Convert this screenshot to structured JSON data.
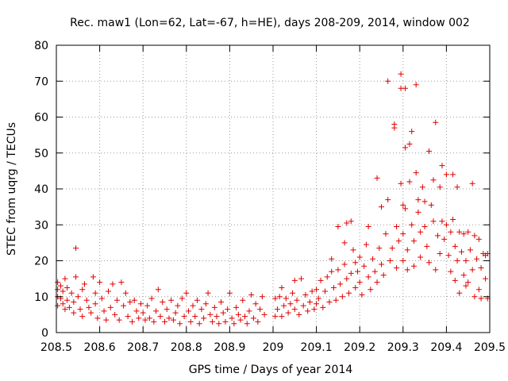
{
  "chart_data": {
    "type": "scatter",
    "title": "Rec. maw1 (Lon=62, Lat=-67, h=HE), days 208-209, 2014, window 002",
    "xlabel": "GPS time / Days of year 2014",
    "ylabel": "STEC from uqrg / TECUs",
    "xlim": [
      208.5,
      209.5
    ],
    "ylim": [
      0,
      80
    ],
    "x_ticks": [
      208.5,
      208.6,
      208.7,
      208.8,
      208.9,
      209.0,
      209.1,
      209.2,
      209.3,
      209.4,
      209.5
    ],
    "x_tick_labels": [
      "208.5",
      "208.6",
      "208.7",
      "208.8",
      "208.9",
      "209",
      "209.1",
      "209.2",
      "209.3",
      "209.4",
      "209.5"
    ],
    "y_ticks": [
      0,
      10,
      20,
      30,
      40,
      50,
      60,
      70,
      80
    ],
    "y_tick_labels": [
      "0",
      "10",
      "20",
      "30",
      "40",
      "50",
      "60",
      "70",
      "80"
    ],
    "grid": true,
    "marker": "+",
    "marker_color": "#e00000",
    "series": [
      {
        "name": "STEC",
        "points": [
          [
            208.503,
            14.0
          ],
          [
            208.503,
            12.0
          ],
          [
            208.503,
            10.0
          ],
          [
            208.503,
            7.5
          ],
          [
            208.51,
            13.0
          ],
          [
            208.51,
            9.5
          ],
          [
            208.515,
            11.5
          ],
          [
            208.515,
            8.0
          ],
          [
            208.52,
            15.0
          ],
          [
            208.52,
            6.5
          ],
          [
            208.525,
            12.5
          ],
          [
            208.525,
            9.0
          ],
          [
            208.53,
            7.0
          ],
          [
            208.535,
            11.0
          ],
          [
            208.54,
            8.5
          ],
          [
            208.54,
            5.5
          ],
          [
            208.545,
            15.5
          ],
          [
            208.545,
            23.5
          ],
          [
            208.55,
            10.0
          ],
          [
            208.555,
            6.5
          ],
          [
            208.56,
            12.0
          ],
          [
            208.56,
            4.5
          ],
          [
            208.565,
            13.5
          ],
          [
            208.57,
            9.0
          ],
          [
            208.575,
            7.0
          ],
          [
            208.58,
            5.5
          ],
          [
            208.585,
            15.5
          ],
          [
            208.59,
            11.0
          ],
          [
            208.59,
            8.0
          ],
          [
            208.595,
            4.0
          ],
          [
            208.6,
            14.0
          ],
          [
            208.605,
            9.5
          ],
          [
            208.61,
            6.0
          ],
          [
            208.615,
            3.5
          ],
          [
            208.62,
            11.5
          ],
          [
            208.625,
            7.0
          ],
          [
            208.63,
            13.5
          ],
          [
            208.635,
            5.0
          ],
          [
            208.64,
            9.0
          ],
          [
            208.645,
            3.5
          ],
          [
            208.65,
            14.0
          ],
          [
            208.655,
            7.5
          ],
          [
            208.66,
            11.0
          ],
          [
            208.665,
            4.5
          ],
          [
            208.67,
            8.5
          ],
          [
            208.675,
            3.0
          ],
          [
            208.68,
            9.0
          ],
          [
            208.685,
            6.0
          ],
          [
            208.69,
            4.0
          ],
          [
            208.695,
            8.0
          ],
          [
            208.7,
            5.5
          ],
          [
            208.705,
            3.5
          ],
          [
            208.71,
            7.5
          ],
          [
            208.715,
            4.0
          ],
          [
            208.72,
            9.5
          ],
          [
            208.725,
            3.0
          ],
          [
            208.73,
            6.0
          ],
          [
            208.735,
            12.0
          ],
          [
            208.74,
            4.5
          ],
          [
            208.745,
            8.5
          ],
          [
            208.75,
            3.0
          ],
          [
            208.755,
            6.5
          ],
          [
            208.76,
            4.0
          ],
          [
            208.765,
            9.0
          ],
          [
            208.77,
            3.5
          ],
          [
            208.775,
            5.5
          ],
          [
            208.78,
            7.5
          ],
          [
            208.785,
            2.5
          ],
          [
            208.79,
            9.5
          ],
          [
            208.795,
            4.5
          ],
          [
            208.8,
            11.0
          ],
          [
            208.805,
            6.0
          ],
          [
            208.81,
            3.0
          ],
          [
            208.815,
            7.5
          ],
          [
            208.82,
            4.5
          ],
          [
            208.825,
            9.0
          ],
          [
            208.83,
            2.5
          ],
          [
            208.835,
            6.5
          ],
          [
            208.84,
            4.0
          ],
          [
            208.845,
            8.0
          ],
          [
            208.85,
            11.0
          ],
          [
            208.855,
            5.0
          ],
          [
            208.86,
            3.0
          ],
          [
            208.865,
            7.0
          ],
          [
            208.87,
            4.5
          ],
          [
            208.875,
            2.5
          ],
          [
            208.88,
            8.5
          ],
          [
            208.885,
            5.5
          ],
          [
            208.89,
            3.0
          ],
          [
            208.895,
            6.5
          ],
          [
            208.9,
            11.0
          ],
          [
            208.905,
            4.0
          ],
          [
            208.91,
            2.5
          ],
          [
            208.915,
            7.0
          ],
          [
            208.92,
            5.0
          ],
          [
            208.925,
            3.5
          ],
          [
            208.93,
            9.0
          ],
          [
            208.935,
            4.5
          ],
          [
            208.94,
            2.5
          ],
          [
            208.945,
            6.0
          ],
          [
            208.95,
            10.5
          ],
          [
            208.955,
            4.0
          ],
          [
            208.96,
            8.0
          ],
          [
            208.965,
            3.0
          ],
          [
            208.97,
            6.5
          ],
          [
            208.975,
            10.0
          ],
          [
            208.98,
            5.0
          ],
          [
            209.005,
            9.5
          ],
          [
            209.005,
            4.5
          ],
          [
            209.01,
            6.5
          ],
          [
            209.015,
            10.0
          ],
          [
            209.02,
            12.5
          ],
          [
            209.02,
            4.5
          ],
          [
            209.025,
            7.5
          ],
          [
            209.03,
            9.5
          ],
          [
            209.035,
            5.5
          ],
          [
            209.04,
            8.0
          ],
          [
            209.045,
            11.0
          ],
          [
            209.05,
            14.5
          ],
          [
            209.05,
            6.5
          ],
          [
            209.055,
            9.0
          ],
          [
            209.06,
            5.0
          ],
          [
            209.065,
            15.0
          ],
          [
            209.07,
            7.5
          ],
          [
            209.075,
            10.5
          ],
          [
            209.08,
            6.0
          ],
          [
            209.085,
            8.5
          ],
          [
            209.09,
            11.5
          ],
          [
            209.095,
            6.5
          ],
          [
            209.1,
            12.0
          ],
          [
            209.1,
            8.0
          ],
          [
            209.105,
            9.5
          ],
          [
            209.11,
            14.5
          ],
          [
            209.115,
            7.0
          ],
          [
            209.12,
            11.5
          ],
          [
            209.125,
            15.5
          ],
          [
            209.13,
            8.5
          ],
          [
            209.135,
            17.0
          ],
          [
            209.135,
            20.5
          ],
          [
            209.14,
            12.5
          ],
          [
            209.145,
            9.0
          ],
          [
            209.15,
            17.5
          ],
          [
            209.15,
            29.5
          ],
          [
            209.155,
            13.5
          ],
          [
            209.16,
            10.0
          ],
          [
            209.165,
            19.0
          ],
          [
            209.165,
            25.0
          ],
          [
            209.17,
            15.0
          ],
          [
            209.17,
            30.5
          ],
          [
            209.175,
            11.0
          ],
          [
            209.18,
            31.0
          ],
          [
            209.18,
            16.5
          ],
          [
            209.185,
            23.0
          ],
          [
            209.19,
            12.5
          ],
          [
            209.19,
            19.5
          ],
          [
            209.195,
            17.0
          ],
          [
            209.2,
            14.0
          ],
          [
            209.2,
            21.0
          ],
          [
            209.205,
            10.5
          ],
          [
            209.21,
            18.5
          ],
          [
            209.215,
            24.5
          ],
          [
            209.22,
            15.5
          ],
          [
            209.22,
            29.5
          ],
          [
            209.225,
            12.0
          ],
          [
            209.23,
            20.5
          ],
          [
            209.235,
            17.0
          ],
          [
            209.24,
            43.0
          ],
          [
            209.24,
            14.0
          ],
          [
            209.245,
            23.5
          ],
          [
            209.25,
            35.0
          ],
          [
            209.25,
            19.0
          ],
          [
            209.255,
            16.0
          ],
          [
            209.26,
            27.5
          ],
          [
            209.265,
            37.0
          ],
          [
            209.265,
            70.0
          ],
          [
            209.27,
            20.0
          ],
          [
            209.275,
            23.5
          ],
          [
            209.28,
            58.0
          ],
          [
            209.28,
            57.0
          ],
          [
            209.285,
            29.5
          ],
          [
            209.285,
            18.0
          ],
          [
            209.29,
            25.5
          ],
          [
            209.295,
            72.0
          ],
          [
            209.295,
            68.0
          ],
          [
            209.295,
            41.5
          ],
          [
            209.3,
            35.5
          ],
          [
            209.3,
            27.5
          ],
          [
            209.3,
            20.0
          ],
          [
            209.305,
            68.0
          ],
          [
            209.305,
            51.5
          ],
          [
            209.305,
            34.5
          ],
          [
            209.31,
            23.0
          ],
          [
            209.31,
            17.5
          ],
          [
            209.315,
            52.5
          ],
          [
            209.315,
            42.0
          ],
          [
            209.32,
            56.0
          ],
          [
            209.32,
            30.0
          ],
          [
            209.325,
            25.5
          ],
          [
            209.325,
            18.5
          ],
          [
            209.33,
            69.0
          ],
          [
            209.33,
            44.5
          ],
          [
            209.335,
            37.0
          ],
          [
            209.335,
            33.5
          ],
          [
            209.34,
            28.0
          ],
          [
            209.34,
            21.0
          ],
          [
            209.345,
            40.5
          ],
          [
            209.35,
            36.5
          ],
          [
            209.35,
            29.5
          ],
          [
            209.355,
            24.0
          ],
          [
            209.36,
            50.5
          ],
          [
            209.36,
            19.5
          ],
          [
            209.365,
            35.5
          ],
          [
            209.37,
            42.5
          ],
          [
            209.37,
            31.0
          ],
          [
            209.375,
            58.5
          ],
          [
            209.375,
            17.5
          ],
          [
            209.38,
            27.0
          ],
          [
            209.385,
            40.5
          ],
          [
            209.385,
            22.0
          ],
          [
            209.39,
            31.0
          ],
          [
            209.39,
            46.5
          ],
          [
            209.395,
            26.0
          ],
          [
            209.4,
            44.0
          ],
          [
            209.4,
            30.0
          ],
          [
            209.405,
            21.5
          ],
          [
            209.41,
            28.0
          ],
          [
            209.41,
            17.0
          ],
          [
            209.415,
            44.0
          ],
          [
            209.415,
            31.5
          ],
          [
            209.42,
            24.0
          ],
          [
            209.42,
            14.5
          ],
          [
            209.425,
            40.5
          ],
          [
            209.425,
            20.0
          ],
          [
            209.43,
            28.0
          ],
          [
            209.43,
            11.0
          ],
          [
            209.435,
            22.5
          ],
          [
            209.44,
            16.0
          ],
          [
            209.44,
            27.5
          ],
          [
            209.445,
            13.0
          ],
          [
            209.445,
            20.0
          ],
          [
            209.45,
            28.0
          ],
          [
            209.45,
            14.0
          ],
          [
            209.455,
            23.0
          ],
          [
            209.46,
            41.5
          ],
          [
            209.46,
            17.5
          ],
          [
            209.465,
            10.0
          ],
          [
            209.465,
            27.0
          ],
          [
            209.47,
            20.5
          ],
          [
            209.475,
            12.0
          ],
          [
            209.475,
            26.0
          ],
          [
            209.48,
            18.0
          ],
          [
            209.48,
            9.5
          ],
          [
            209.485,
            22.0
          ],
          [
            209.49,
            15.0
          ],
          [
            209.49,
            21.5
          ],
          [
            209.495,
            9.5
          ],
          [
            209.495,
            22.0
          ]
        ]
      }
    ]
  }
}
